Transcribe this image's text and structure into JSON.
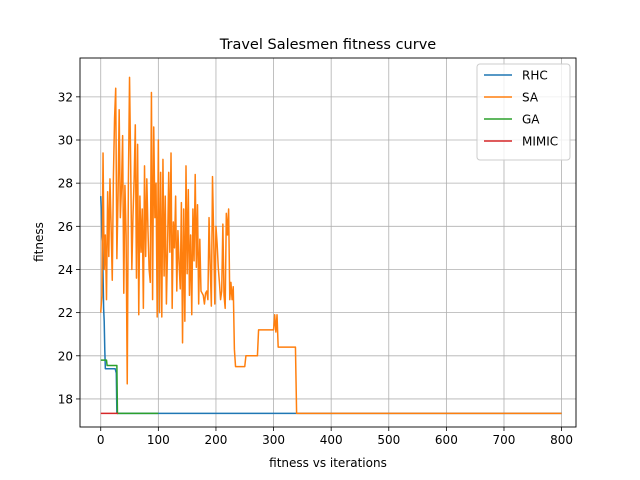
{
  "chart_data": {
    "type": "line",
    "title": "Travel Salesmen fitness curve",
    "xlabel": "fitness vs iterations",
    "ylabel": "fitness",
    "xlim": [
      -36,
      825
    ],
    "ylim": [
      16.7,
      33.8
    ],
    "xticks": [
      0,
      100,
      200,
      300,
      400,
      500,
      600,
      700,
      800
    ],
    "yticks": [
      18,
      20,
      22,
      24,
      26,
      28,
      30,
      32
    ],
    "grid": true,
    "legend_position": "top-right",
    "series": [
      {
        "name": "RHC",
        "color": "#1f77b4",
        "points": [
          [
            0,
            27.4
          ],
          [
            1,
            26.8
          ],
          [
            2,
            25.5
          ],
          [
            3,
            25.2
          ],
          [
            4,
            23.8
          ],
          [
            5,
            22.2
          ],
          [
            6,
            21.6
          ],
          [
            7,
            20.3
          ],
          [
            8,
            19.4
          ],
          [
            25,
            19.4
          ],
          [
            27,
            19.2
          ],
          [
            28,
            17.33
          ],
          [
            340,
            17.33
          ],
          [
            800,
            17.33
          ]
        ]
      },
      {
        "name": "SA",
        "color": "#ff7f0e",
        "points": [
          [
            0,
            22.0
          ],
          [
            2,
            22.8
          ],
          [
            4,
            29.4
          ],
          [
            6,
            24.0
          ],
          [
            8,
            25.6
          ],
          [
            10,
            22.6
          ],
          [
            12,
            27.6
          ],
          [
            14,
            24.6
          ],
          [
            16,
            28.2
          ],
          [
            18,
            26.0
          ],
          [
            20,
            23.5
          ],
          [
            22,
            28.3
          ],
          [
            24,
            31.0
          ],
          [
            26,
            32.4
          ],
          [
            28,
            24.5
          ],
          [
            30,
            27.3
          ],
          [
            32,
            31.4
          ],
          [
            34,
            26.4
          ],
          [
            36,
            27.8
          ],
          [
            38,
            30.2
          ],
          [
            40,
            22.9
          ],
          [
            42,
            27.9
          ],
          [
            44,
            25.6
          ],
          [
            46,
            18.7
          ],
          [
            48,
            28.0
          ],
          [
            50,
            32.9
          ],
          [
            52,
            28.8
          ],
          [
            54,
            24.0
          ],
          [
            56,
            26.5
          ],
          [
            58,
            28.2
          ],
          [
            60,
            30.7
          ],
          [
            62,
            23.6
          ],
          [
            64,
            29.8
          ],
          [
            66,
            21.9
          ],
          [
            68,
            27.4
          ],
          [
            70,
            24.8
          ],
          [
            72,
            26.8
          ],
          [
            74,
            22.2
          ],
          [
            76,
            28.8
          ],
          [
            78,
            24.6
          ],
          [
            80,
            28.2
          ],
          [
            82,
            25.8
          ],
          [
            84,
            24.0
          ],
          [
            86,
            23.4
          ],
          [
            88,
            32.2
          ],
          [
            90,
            22.6
          ],
          [
            92,
            30.6
          ],
          [
            94,
            26.4
          ],
          [
            96,
            28.0
          ],
          [
            98,
            21.8
          ],
          [
            100,
            30.0
          ],
          [
            102,
            22.0
          ],
          [
            104,
            28.5
          ],
          [
            106,
            21.8
          ],
          [
            108,
            29.1
          ],
          [
            110,
            23.7
          ],
          [
            112,
            27.4
          ],
          [
            114,
            22.4
          ],
          [
            116,
            25.0
          ],
          [
            118,
            28.5
          ],
          [
            120,
            24.8
          ],
          [
            122,
            29.4
          ],
          [
            124,
            22.2
          ],
          [
            126,
            26.2
          ],
          [
            128,
            25.0
          ],
          [
            130,
            27.4
          ],
          [
            132,
            23.0
          ],
          [
            134,
            25.8
          ],
          [
            136,
            24.3
          ],
          [
            138,
            23.1
          ],
          [
            140,
            27.1
          ],
          [
            142,
            20.6
          ],
          [
            144,
            26.8
          ],
          [
            146,
            21.6
          ],
          [
            148,
            28.8
          ],
          [
            150,
            23.8
          ],
          [
            152,
            27.7
          ],
          [
            154,
            22.8
          ],
          [
            156,
            25.6
          ],
          [
            158,
            21.9
          ],
          [
            160,
            26.8
          ],
          [
            162,
            24.4
          ],
          [
            164,
            28.4
          ],
          [
            166,
            24.1
          ],
          [
            168,
            27.0
          ],
          [
            170,
            22.4
          ],
          [
            172,
            25.4
          ],
          [
            174,
            23.0
          ],
          [
            176,
            22.9
          ],
          [
            178,
            22.8
          ],
          [
            180,
            22.4
          ],
          [
            182,
            22.9
          ],
          [
            184,
            23.0
          ],
          [
            186,
            22.6
          ],
          [
            188,
            26.4
          ],
          [
            190,
            24.2
          ],
          [
            192,
            22.3
          ],
          [
            194,
            28.3
          ],
          [
            196,
            25.6
          ],
          [
            198,
            22.4
          ],
          [
            200,
            26.0
          ],
          [
            202,
            25.2
          ],
          [
            204,
            24.1
          ],
          [
            206,
            23.4
          ],
          [
            208,
            22.6
          ],
          [
            210,
            23.0
          ],
          [
            212,
            26.1
          ],
          [
            214,
            22.8
          ],
          [
            216,
            22.2
          ],
          [
            218,
            26.6
          ],
          [
            220,
            25.6
          ],
          [
            222,
            26.8
          ],
          [
            224,
            22.6
          ],
          [
            226,
            23.4
          ],
          [
            228,
            22.6
          ],
          [
            230,
            23.2
          ],
          [
            232,
            20.3
          ],
          [
            234,
            19.5
          ],
          [
            250,
            19.5
          ],
          [
            252,
            20.0
          ],
          [
            272,
            20.0
          ],
          [
            274,
            21.2
          ],
          [
            300,
            21.2
          ],
          [
            302,
            21.9
          ],
          [
            304,
            21.1
          ],
          [
            306,
            21.9
          ],
          [
            308,
            20.4
          ],
          [
            338,
            20.4
          ],
          [
            340,
            17.33
          ],
          [
            800,
            17.33
          ]
        ]
      },
      {
        "name": "GA",
        "color": "#2ca02c",
        "points": [
          [
            0,
            19.8
          ],
          [
            10,
            19.8
          ],
          [
            11,
            19.55
          ],
          [
            28,
            19.55
          ],
          [
            29,
            17.33
          ],
          [
            100,
            17.33
          ]
        ]
      },
      {
        "name": "MIMIC",
        "color": "#d62728",
        "points": [
          [
            0,
            17.33
          ],
          [
            30,
            17.33
          ]
        ]
      }
    ]
  }
}
